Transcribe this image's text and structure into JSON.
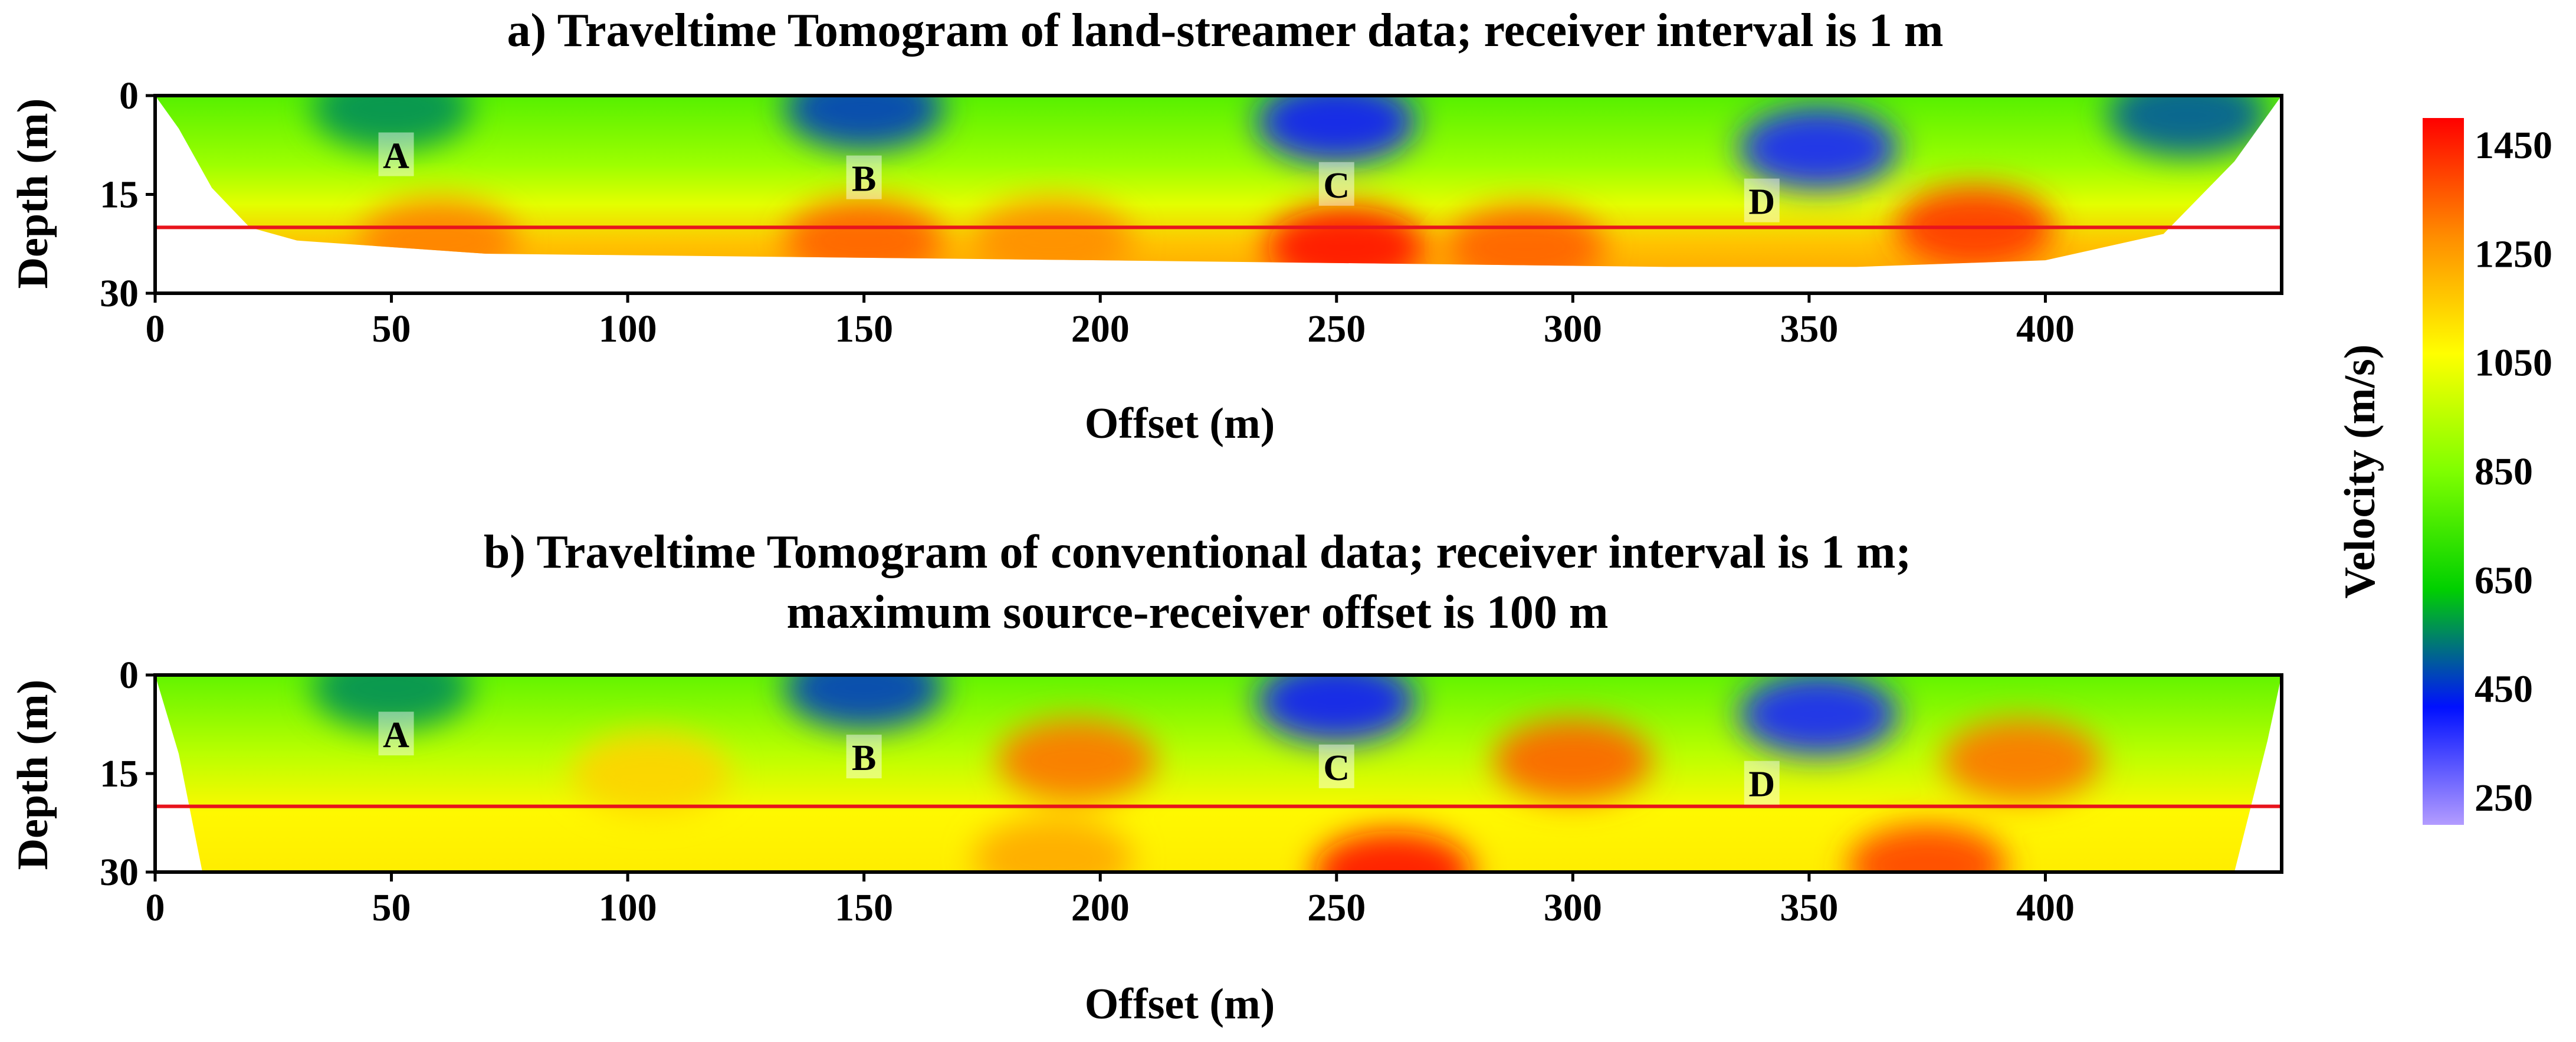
{
  "chart_data": [
    {
      "type": "heatmap",
      "id": "a",
      "title_lines": [
        "a) Traveltime Tomogram of land-streamer data; receiver interval is 1 m"
      ],
      "xlabel": "Offset (m)",
      "ylabel": "Depth (m)",
      "xlim": [
        0,
        450
      ],
      "ylim": [
        0,
        30
      ],
      "xticks": [
        "0",
        "50",
        "100",
        "150",
        "200",
        "250",
        "300",
        "350",
        "400"
      ],
      "xtick_values": [
        0,
        50,
        100,
        150,
        200,
        250,
        300,
        350,
        400
      ],
      "yticks": [
        "0",
        "15",
        "30"
      ],
      "ytick_values": [
        0,
        15,
        30
      ],
      "reference_line_depth": 20,
      "reference_line_color": "#e8141c",
      "coverage_bottom": [
        [
          0,
          0
        ],
        [
          5,
          5
        ],
        [
          12,
          14
        ],
        [
          20,
          20
        ],
        [
          30,
          22
        ],
        [
          70,
          24
        ],
        [
          200,
          25
        ],
        [
          320,
          26
        ],
        [
          360,
          26
        ],
        [
          400,
          25
        ],
        [
          425,
          21
        ],
        [
          440,
          10
        ],
        [
          450,
          0
        ]
      ],
      "anomalies": [
        {
          "x": 50,
          "depth": 2,
          "velocity": 560
        },
        {
          "x": 150,
          "depth": 2,
          "velocity": 470
        },
        {
          "x": 250,
          "depth": 4,
          "velocity": 400
        },
        {
          "x": 352,
          "depth": 8,
          "velocity": 390
        },
        {
          "x": 430,
          "depth": 3,
          "velocity": 500
        },
        {
          "x": 150,
          "depth": 22,
          "velocity": 1350
        },
        {
          "x": 252,
          "depth": 23,
          "velocity": 1480
        },
        {
          "x": 290,
          "depth": 23,
          "velocity": 1350
        },
        {
          "x": 385,
          "depth": 20,
          "velocity": 1420
        },
        {
          "x": 60,
          "depth": 22,
          "velocity": 1300
        },
        {
          "x": 190,
          "depth": 22,
          "velocity": 1280
        }
      ],
      "labels": [
        {
          "text": "A",
          "x": 51,
          "depth": 9
        },
        {
          "text": "B",
          "x": 150,
          "depth": 12.5
        },
        {
          "text": "C",
          "x": 250,
          "depth": 13.5
        },
        {
          "text": "D",
          "x": 340,
          "depth": 16
        }
      ]
    },
    {
      "type": "heatmap",
      "id": "b",
      "title_lines": [
        "b) Traveltime Tomogram of conventional data; receiver interval is 1 m;",
        "maximum source-receiver offset is 100 m"
      ],
      "xlabel": "Offset (m)",
      "ylabel": "Depth (m)",
      "xlim": [
        0,
        450
      ],
      "ylim": [
        0,
        30
      ],
      "xticks": [
        "0",
        "50",
        "100",
        "150",
        "200",
        "250",
        "300",
        "350",
        "400"
      ],
      "xtick_values": [
        0,
        50,
        100,
        150,
        200,
        250,
        300,
        350,
        400
      ],
      "yticks": [
        "0",
        "15",
        "30"
      ],
      "ytick_values": [
        0,
        15,
        30
      ],
      "reference_line_depth": 20,
      "reference_line_color": "#e8141c",
      "coverage_bottom": [
        [
          0,
          0
        ],
        [
          5,
          12
        ],
        [
          10,
          30
        ],
        [
          440,
          30
        ],
        [
          447,
          10
        ],
        [
          450,
          0
        ]
      ],
      "anomalies": [
        {
          "x": 50,
          "depth": 2,
          "velocity": 560
        },
        {
          "x": 150,
          "depth": 2,
          "velocity": 470
        },
        {
          "x": 250,
          "depth": 4,
          "velocity": 400
        },
        {
          "x": 352,
          "depth": 6,
          "velocity": 390
        },
        {
          "x": 105,
          "depth": 15,
          "velocity": 1150
        },
        {
          "x": 195,
          "depth": 13,
          "velocity": 1320
        },
        {
          "x": 190,
          "depth": 28,
          "velocity": 1230
        },
        {
          "x": 300,
          "depth": 13,
          "velocity": 1350
        },
        {
          "x": 262,
          "depth": 30,
          "velocity": 1480
        },
        {
          "x": 395,
          "depth": 13,
          "velocity": 1320
        },
        {
          "x": 375,
          "depth": 29,
          "velocity": 1400
        }
      ],
      "labels": [
        {
          "text": "A",
          "x": 51,
          "depth": 9
        },
        {
          "text": "B",
          "x": 150,
          "depth": 12.5
        },
        {
          "text": "C",
          "x": 250,
          "depth": 14
        },
        {
          "text": "D",
          "x": 340,
          "depth": 16.5
        }
      ]
    }
  ],
  "colorbar": {
    "label": "Velocity (m/s)",
    "vmin": 200,
    "vmax": 1500,
    "ticks": [
      "1450",
      "1250",
      "1050",
      "850",
      "650",
      "450",
      "250"
    ],
    "tick_values": [
      1450,
      1250,
      1050,
      850,
      650,
      450,
      250
    ],
    "colors": [
      "#b39cff",
      "#0010ff",
      "#00d000",
      "#7fff00",
      "#ffff00",
      "#ff8c00",
      "#ff0000"
    ]
  }
}
